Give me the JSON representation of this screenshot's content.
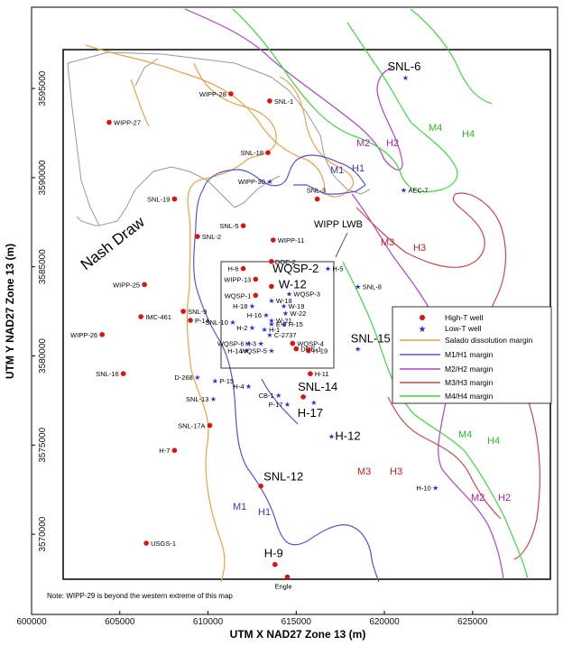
{
  "axes": {
    "xlabel": "UTM X NAD27 Zone 13 (m)",
    "ylabel": "UTM Y NAD27 Zone 13 (m)",
    "xticks": [
      "600000",
      "605000",
      "610000",
      "615000",
      "620000",
      "625000"
    ],
    "yticks": [
      "3595000",
      "3590000",
      "3585000",
      "3580000",
      "3575000",
      "3570000"
    ]
  },
  "region_label": "Nash Draw",
  "wipp_label": "WIPP LWB",
  "note": "Note:  WIPP-29 is beyond the western extreme of this map",
  "legend": {
    "high_t": "High-T well",
    "low_t": "Low-T well",
    "salado": "Salado dissolution margin",
    "m1h1": "M1/H1 margin",
    "m2h2": "M2/H2 margin",
    "m3h3": "M3/H3 margin",
    "m4h4": "M4/H4 margin"
  },
  "colors": {
    "high_t": "#dd1111",
    "low_t": "#2233cc",
    "salado": "#e8a24a",
    "m1h1": "#5555cc",
    "m2h2": "#b044c4",
    "m3h3": "#c84a4a",
    "m4h4": "#44d444",
    "outline": "#999999"
  },
  "chart_data": {
    "type": "scatter",
    "xlim": [
      600000,
      629000
    ],
    "ylim": [
      3565500,
      3599500
    ],
    "xlabel": "UTM X NAD27 Zone 13 (m)",
    "ylabel": "UTM Y NAD27 Zone 13 (m)",
    "series": [
      {
        "name": "High-T well",
        "points": [
          {
            "label": "WIPP-28",
            "x": 611300,
            "y": 3594700
          },
          {
            "label": "SNL-1",
            "x": 613500,
            "y": 3594300
          },
          {
            "label": "WIPP-27",
            "x": 604400,
            "y": 3593100
          },
          {
            "label": "SNL-18",
            "x": 613400,
            "y": 3591400
          },
          {
            "label": "SNL-19",
            "x": 608100,
            "y": 3588800
          },
          {
            "label": "SNL-3",
            "x": 616200,
            "y": 3588800
          },
          {
            "label": "SNL-5",
            "x": 612000,
            "y": 3587300
          },
          {
            "label": "SNL-2",
            "x": 609400,
            "y": 3586700
          },
          {
            "label": "WIPP-11",
            "x": 613700,
            "y": 3586500
          },
          {
            "label": "DOE-2",
            "x": 613600,
            "y": 3585300
          },
          {
            "label": "H-6",
            "x": 612000,
            "y": 3584900
          },
          {
            "label": "WIPP-25",
            "x": 606400,
            "y": 3584000
          },
          {
            "label": "WIPP-13",
            "x": 612700,
            "y": 3584300
          },
          {
            "label": "W-12",
            "x": 613600,
            "y": 3583900
          },
          {
            "label": "WQSP-1",
            "x": 612700,
            "y": 3583400
          },
          {
            "label": "SNL-9",
            "x": 608600,
            "y": 3582500
          },
          {
            "label": "IMC-461",
            "x": 606200,
            "y": 3582200
          },
          {
            "label": "P-14",
            "x": 609000,
            "y": 3582000
          },
          {
            "label": "WIPP-26",
            "x": 604000,
            "y": 3581200
          },
          {
            "label": "WQSP-4",
            "x": 614800,
            "y": 3580700
          },
          {
            "label": "DOE-1",
            "x": 615000,
            "y": 3580400
          },
          {
            "label": "H-19",
            "x": 615700,
            "y": 3580300
          },
          {
            "label": "H-11",
            "x": 615800,
            "y": 3579000
          },
          {
            "label": "SNL-16",
            "x": 605200,
            "y": 3579000
          },
          {
            "label": "SNL-14",
            "x": 615400,
            "y": 3577700
          },
          {
            "label": "SNL-17A",
            "x": 610100,
            "y": 3576100
          },
          {
            "label": "H-7",
            "x": 608100,
            "y": 3574700
          },
          {
            "label": "SNL-12",
            "x": 613000,
            "y": 3572700
          },
          {
            "label": "USGS-1",
            "x": 606500,
            "y": 3569500
          },
          {
            "label": "H-9",
            "x": 613800,
            "y": 3568300
          },
          {
            "label": "Engle",
            "x": 614500,
            "y": 3567600
          }
        ]
      },
      {
        "name": "Low-T well",
        "points": [
          {
            "label": "SNL-6",
            "x": 621200,
            "y": 3595600
          },
          {
            "label": "WIPP-30",
            "x": 613500,
            "y": 3589800
          },
          {
            "label": "AEC-7",
            "x": 621100,
            "y": 3589300
          },
          {
            "label": "H-5",
            "x": 616800,
            "y": 3584900
          },
          {
            "label": "SNL-8",
            "x": 618500,
            "y": 3583900
          },
          {
            "label": "WQSP-3",
            "x": 614600,
            "y": 3583500
          },
          {
            "label": "W-18",
            "x": 613600,
            "y": 3583100
          },
          {
            "label": "H-18",
            "x": 612500,
            "y": 3582800
          },
          {
            "label": "W-19",
            "x": 614300,
            "y": 3582800
          },
          {
            "label": "W-22",
            "x": 614400,
            "y": 3582400
          },
          {
            "label": "H-16",
            "x": 613300,
            "y": 3582300
          },
          {
            "label": "W-21",
            "x": 613600,
            "y": 3582000
          },
          {
            "label": "SNL-10",
            "x": 611400,
            "y": 3581900
          },
          {
            "label": "E-9",
            "x": 613600,
            "y": 3581800
          },
          {
            "label": "H-15",
            "x": 614300,
            "y": 3581800
          },
          {
            "label": "H-2",
            "x": 612500,
            "y": 3581600
          },
          {
            "label": "H-1",
            "x": 613200,
            "y": 3581500
          },
          {
            "label": "C-2737",
            "x": 613500,
            "y": 3581200
          },
          {
            "label": "H-3",
            "x": 613000,
            "y": 3580700
          },
          {
            "label": "WQSP-6",
            "x": 612300,
            "y": 3580700
          },
          {
            "label": "H-14",
            "x": 612200,
            "y": 3580300
          },
          {
            "label": "WQSP-5",
            "x": 613600,
            "y": 3580300
          },
          {
            "label": "SNL-15",
            "x": 618500,
            "y": 3580400
          },
          {
            "label": "D-268",
            "x": 609400,
            "y": 3578800
          },
          {
            "label": "P-15",
            "x": 610400,
            "y": 3578600
          },
          {
            "label": "H-4",
            "x": 612300,
            "y": 3578300
          },
          {
            "label": "CB-1",
            "x": 614000,
            "y": 3577800
          },
          {
            "label": "SNL-13",
            "x": 610300,
            "y": 3577600
          },
          {
            "label": "P-17",
            "x": 614500,
            "y": 3577300
          },
          {
            "label": "H-17",
            "x": 616000,
            "y": 3577400
          },
          {
            "label": "H-12",
            "x": 617000,
            "y": 3575500
          },
          {
            "label": "H-10",
            "x": 622900,
            "y": 3572600
          }
        ]
      }
    ]
  }
}
